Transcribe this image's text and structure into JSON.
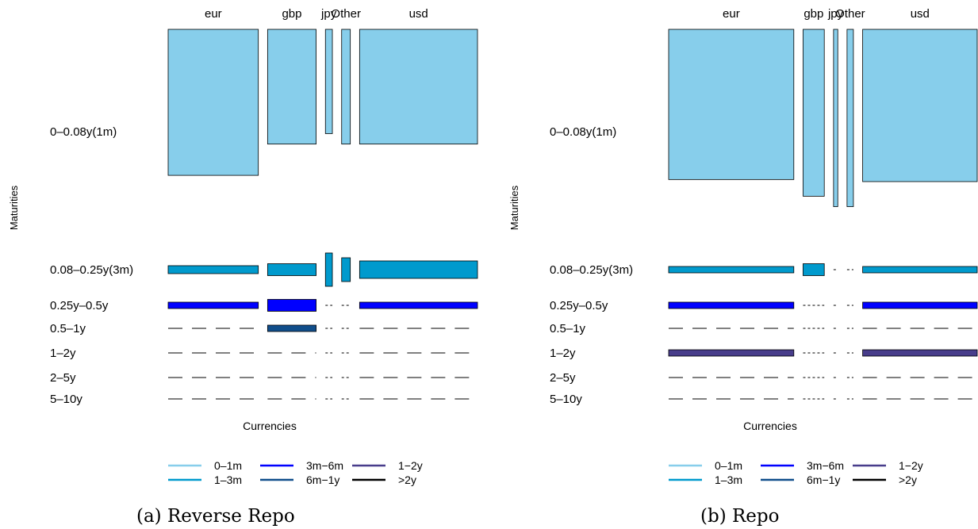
{
  "colors": {
    "0-1m": "#87CEEB",
    "1-3m": "#009ACD",
    "3m-6m": "#0000FF",
    "6m-1y": "#104E8B",
    "1-2y": "#483D8B",
    ">2y": "#000000"
  },
  "chart_data": [
    {
      "type": "mosaic",
      "caption": "(a) Reverse Repo",
      "xlabel": "Currencies",
      "ylabel": "Maturities",
      "categories": [
        "eur",
        "gbp",
        "jpy",
        "Other",
        "usd"
      ],
      "category_widths": [
        0.26,
        0.14,
        0.02,
        0.025,
        0.34
      ],
      "maturities": [
        "0–0.08y(1m)",
        "0.08–0.25y(3m)",
        "0.25y–0.5y",
        "0.5–1y",
        "1–2y",
        "2–5y",
        "5–10y"
      ],
      "maturity_colors": [
        "0-1m",
        "1-3m",
        "3m-6m",
        "6m-1y",
        "1-2y",
        ">2y",
        ">2y"
      ],
      "shares": [
        [
          0.7,
          0.1,
          0.03,
          0,
          0,
          0,
          0
        ],
        [
          0.55,
          0.15,
          0.15,
          0.05,
          0,
          0,
          0
        ],
        [
          0.5,
          0.42,
          0,
          0,
          0,
          0,
          0
        ],
        [
          0.55,
          0.3,
          0,
          0,
          0,
          0,
          0
        ],
        [
          0.55,
          0.22,
          0.06,
          0,
          0,
          0,
          0
        ]
      ],
      "legend": [
        {
          "label": "0–1m",
          "color": "0-1m"
        },
        {
          "label": "1–3m",
          "color": "1-3m"
        },
        {
          "label": "3m−6m",
          "color": "3m-6m"
        },
        {
          "label": "6m−1y",
          "color": "6m-1y"
        },
        {
          "label": "1−2y",
          "color": "1-2y"
        },
        {
          "label": ">2y",
          "color": ">2y"
        }
      ]
    },
    {
      "type": "mosaic",
      "caption": "(b) Repo",
      "xlabel": "Currencies",
      "ylabel": "Maturities",
      "categories": [
        "eur",
        "gbp",
        "jpy",
        "Other",
        "usd"
      ],
      "category_widths": [
        0.295,
        0.05,
        0.01,
        0.015,
        0.27
      ],
      "maturities": [
        "0–0.08y(1m)",
        "0.08–0.25y(3m)",
        "0.25y–0.5y",
        "0.5–1y",
        "1–2y",
        "2–5y",
        "5–10y"
      ],
      "maturity_colors": [
        "0-1m",
        "1-3m",
        "3m-6m",
        "6m-1y",
        "1-2y",
        ">2y",
        ">2y"
      ],
      "shares": [
        [
          0.72,
          0.06,
          0.04,
          0,
          0.02,
          0,
          0
        ],
        [
          0.8,
          0.15,
          0,
          0,
          0,
          0,
          0
        ],
        [
          0.85,
          0,
          0,
          0,
          0,
          0,
          0
        ],
        [
          0.85,
          0,
          0,
          0,
          0,
          0,
          0
        ],
        [
          0.73,
          0.06,
          0.02,
          0,
          0.02,
          0,
          0
        ]
      ],
      "legend": [
        {
          "label": "0–1m",
          "color": "0-1m"
        },
        {
          "label": "1–3m",
          "color": "1-3m"
        },
        {
          "label": "3m−6m",
          "color": "3m-6m"
        },
        {
          "label": "6m−1y",
          "color": "6m-1y"
        },
        {
          "label": "1−2y",
          "color": "1-2y"
        },
        {
          "label": ">2y",
          "color": ">2y"
        }
      ]
    }
  ]
}
